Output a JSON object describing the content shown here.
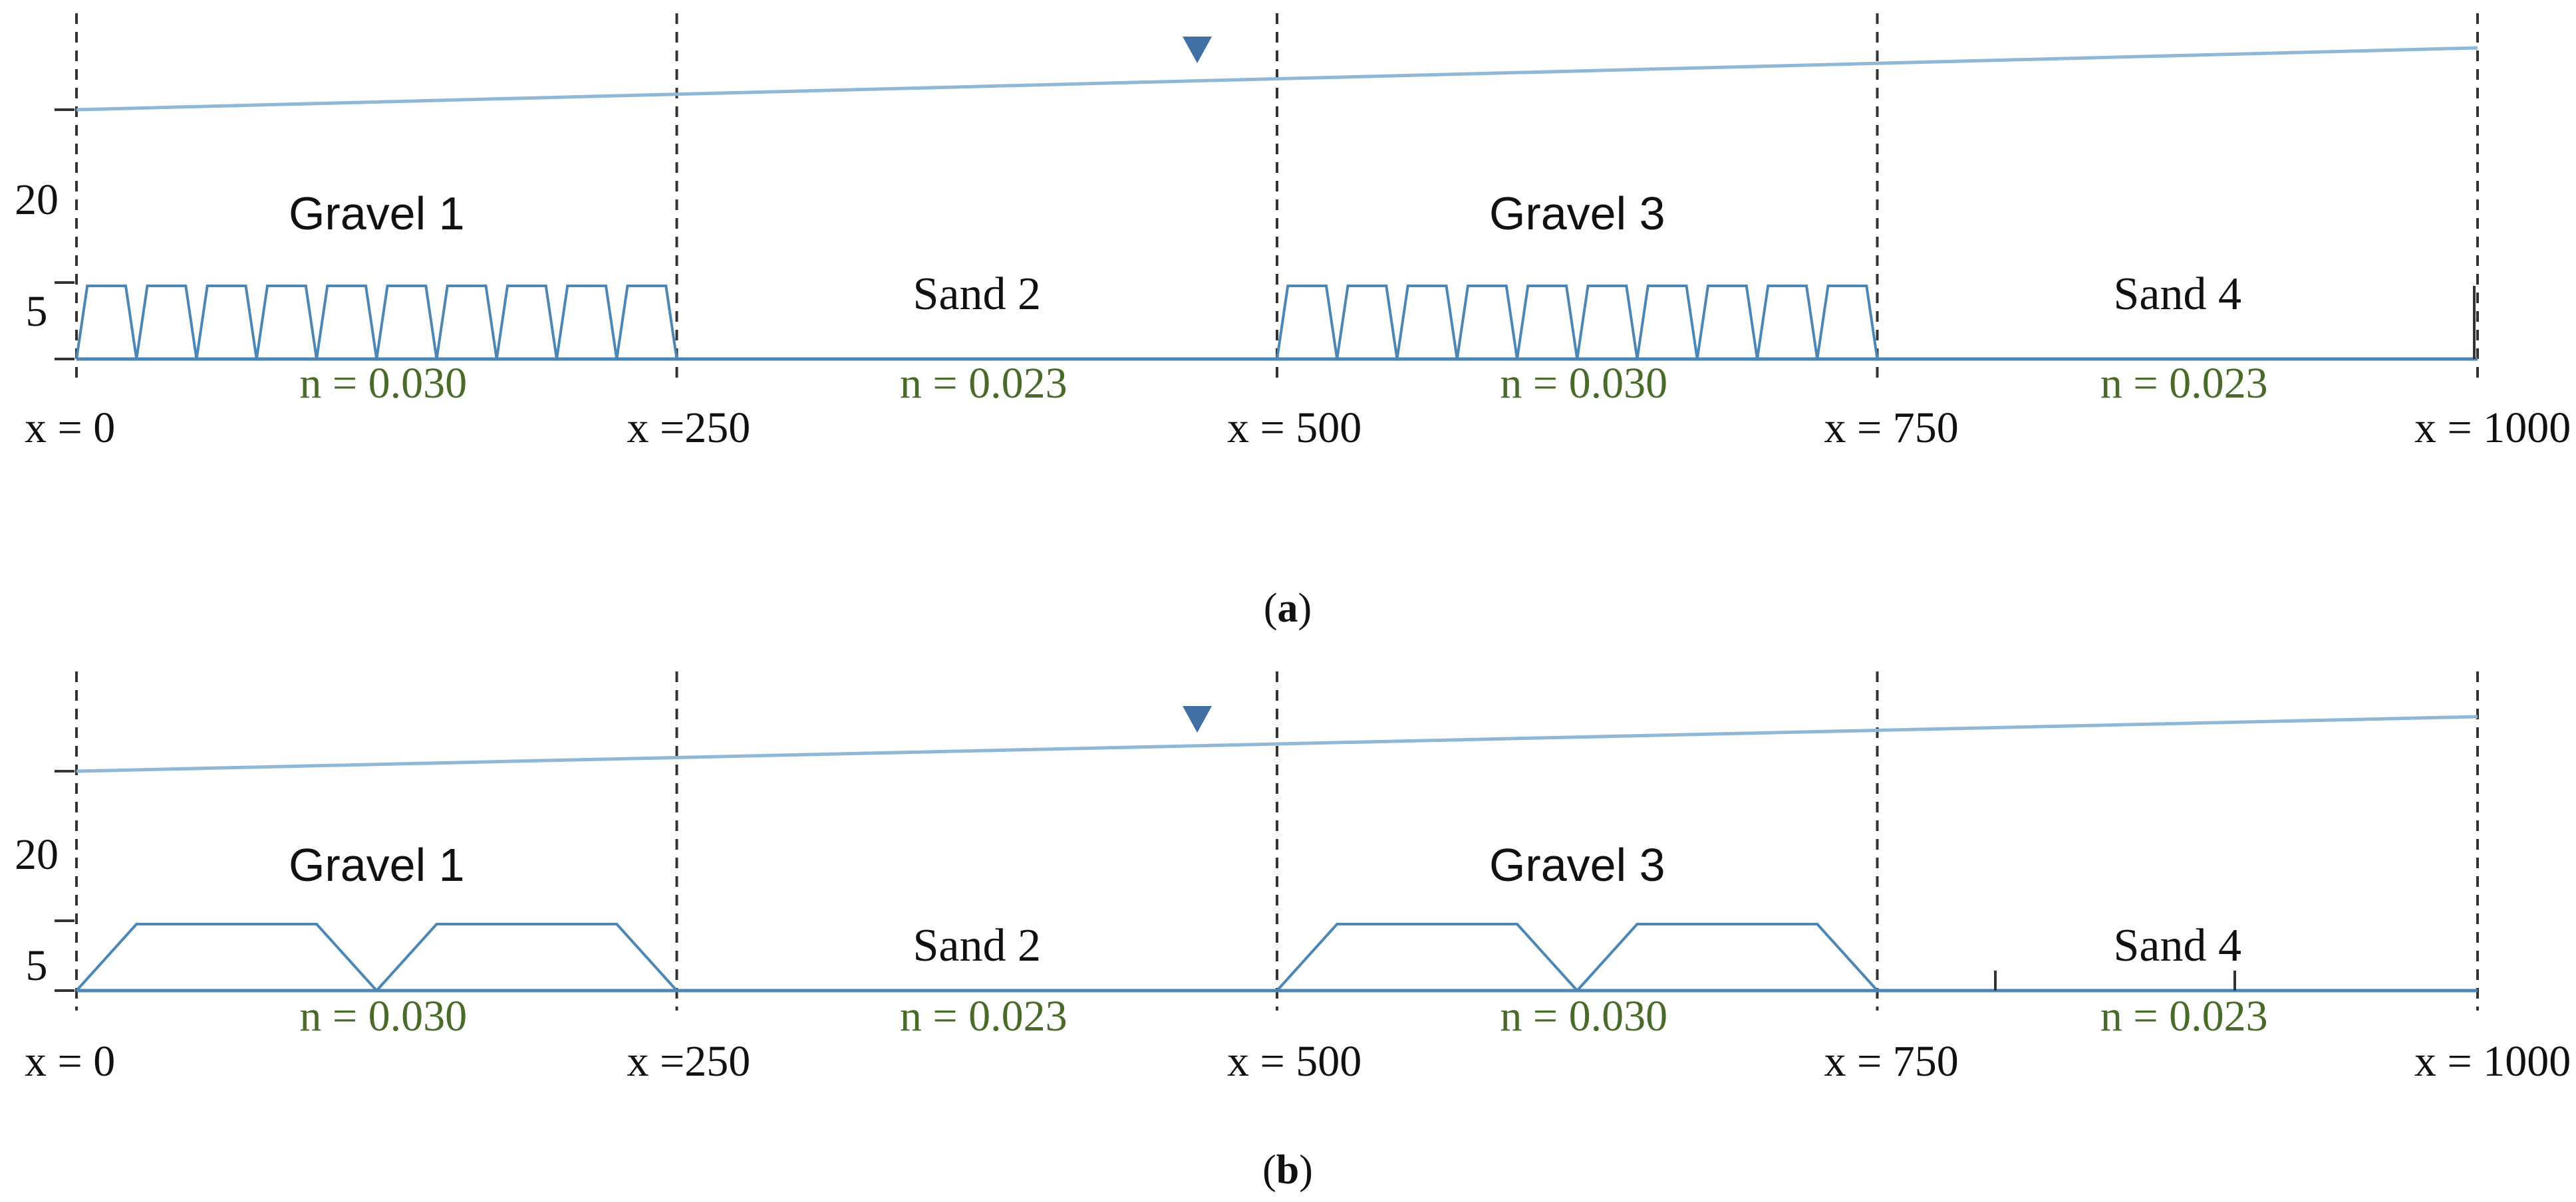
{
  "colors": {
    "water": "#8fb8d8",
    "bed": "#4a86b6",
    "line": "#333333",
    "marker": "#3f6fa3",
    "roughness_text": "#4a6a2a",
    "text": "#111111"
  },
  "x_positions": [
    0,
    250,
    500,
    750,
    1000
  ],
  "panels": [
    {
      "caption_open": "(",
      "caption_letter": "a",
      "caption_close": ")",
      "y_ticks": [
        {
          "label": "20",
          "value": 20
        },
        {
          "label": "5",
          "value": 5
        }
      ],
      "x_labels": [
        "x = 0",
        "x =250",
        "x = 500",
        "x = 750",
        "x = 1000"
      ],
      "segments": [
        {
          "name": "Gravel 1",
          "roughness": "n = 0.030",
          "type": "gravel",
          "dune_count": 10
        },
        {
          "name": "Sand 2",
          "roughness": "n = 0.023",
          "type": "sand",
          "dune_count": 0
        },
        {
          "name": "Gravel 3",
          "roughness": "n = 0.030",
          "type": "gravel",
          "dune_count": 10
        },
        {
          "name": "Sand 4",
          "roughness": "n = 0.023",
          "type": "sand",
          "dune_count": 0
        }
      ]
    },
    {
      "caption_open": "(",
      "caption_letter": "b",
      "caption_close": ")",
      "y_ticks": [
        {
          "label": "20",
          "value": 20
        },
        {
          "label": "5",
          "value": 5
        }
      ],
      "x_labels": [
        "x = 0",
        "x =250",
        "x = 500",
        "x = 750",
        "x = 1000"
      ],
      "segments": [
        {
          "name": "Gravel 1",
          "roughness": "n = 0.030",
          "type": "gravel",
          "dune_count": 2
        },
        {
          "name": "Sand 2",
          "roughness": "n = 0.023",
          "type": "sand",
          "dune_count": 0
        },
        {
          "name": "Gravel 3",
          "roughness": "n = 0.030",
          "type": "gravel",
          "dune_count": 2
        },
        {
          "name": "Sand 4",
          "roughness": "n = 0.023",
          "type": "sand",
          "dune_count": 0
        }
      ]
    }
  ]
}
